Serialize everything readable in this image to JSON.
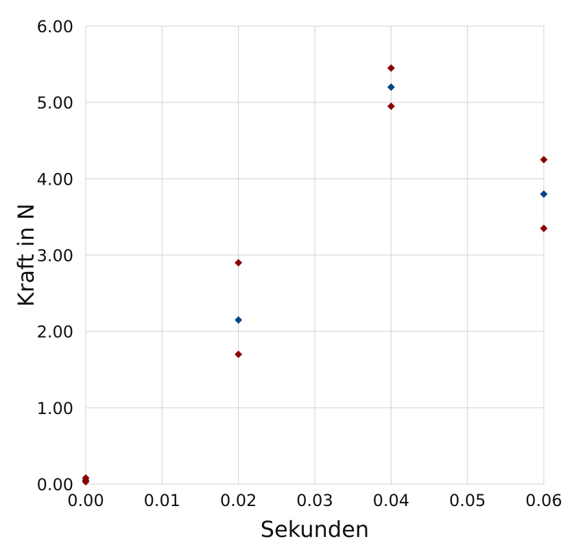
{
  "chart_data": {
    "type": "scatter",
    "title": "",
    "xlabel": "Sekunden",
    "ylabel": "Kraft in N",
    "xlim": [
      0,
      0.06
    ],
    "ylim": [
      0,
      6
    ],
    "x_ticks": [
      "0.00",
      "0.01",
      "0.02",
      "0.03",
      "0.04",
      "0.05",
      "0.06"
    ],
    "y_ticks": [
      "0.00",
      "1.00",
      "2.00",
      "3.00",
      "4.00",
      "5.00",
      "6.00"
    ],
    "grid": true,
    "legend": "none",
    "marker": "diamond",
    "series": [
      {
        "color": "#00468b",
        "points": [
          {
            "x": 0.0,
            "y": 0.05
          },
          {
            "x": 0.02,
            "y": 2.15
          },
          {
            "x": 0.04,
            "y": 5.2
          },
          {
            "x": 0.06,
            "y": 3.8
          }
        ]
      },
      {
        "color": "#8b0000",
        "points": [
          {
            "x": 0.0,
            "y": 0.08
          },
          {
            "x": 0.02,
            "y": 2.9
          },
          {
            "x": 0.04,
            "y": 5.45
          },
          {
            "x": 0.06,
            "y": 4.25
          }
        ]
      },
      {
        "color": "#8b0000",
        "points": [
          {
            "x": 0.0,
            "y": 0.03
          },
          {
            "x": 0.02,
            "y": 1.7
          },
          {
            "x": 0.04,
            "y": 4.95
          },
          {
            "x": 0.06,
            "y": 3.35
          }
        ]
      }
    ]
  }
}
